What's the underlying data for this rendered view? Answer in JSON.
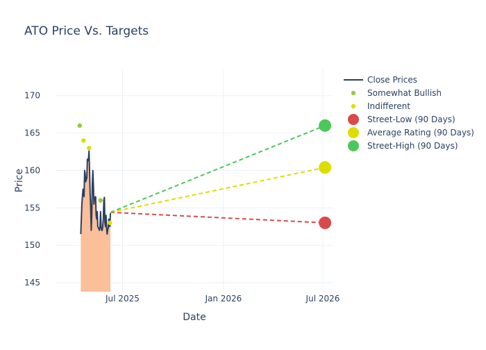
{
  "chart_data": {
    "type": "line",
    "title": "ATO Price Vs. Targets",
    "xlabel": "Date",
    "ylabel": "Price",
    "x_range": [
      "2025-03-01",
      "2026-07-20"
    ],
    "ylim": [
      143.8,
      173.5
    ],
    "y_ticks": [
      145,
      150,
      155,
      160,
      165,
      170
    ],
    "x_ticks": [
      {
        "date": "2025-07-01",
        "label": "Jul 2025"
      },
      {
        "date": "2026-01-01",
        "label": "Jan 2026"
      },
      {
        "date": "2026-07-01",
        "label": "Jul 2026"
      }
    ],
    "grid": true,
    "legend_position": "top-right",
    "colors": {
      "close": "#2a3f5f",
      "area_fill": "#fbbf99",
      "somewhat_bullish": "#97c93d",
      "indifferent": "#dedd00",
      "street_low": "#d94a4a",
      "average": "#dedd00",
      "street_high": "#4cc75a"
    },
    "series": [
      {
        "name": "Close Prices",
        "kind": "line",
        "points": [
          [
            "2025-04-16",
            151.5
          ],
          [
            "2025-04-17",
            153.5
          ],
          [
            "2025-04-18",
            155.5
          ],
          [
            "2025-04-20",
            157.5
          ],
          [
            "2025-04-21",
            157.0
          ],
          [
            "2025-04-22",
            156.5
          ],
          [
            "2025-04-23",
            160.0
          ],
          [
            "2025-04-24",
            159.5
          ],
          [
            "2025-04-25",
            158.5
          ],
          [
            "2025-04-27",
            159.0
          ],
          [
            "2025-04-28",
            161.5
          ],
          [
            "2025-04-29",
            161.3
          ],
          [
            "2025-04-30",
            161.5
          ],
          [
            "2025-05-01",
            162.6
          ],
          [
            "2025-05-02",
            160.0
          ],
          [
            "2025-05-03",
            157.0
          ],
          [
            "2025-05-04",
            155.0
          ],
          [
            "2025-05-05",
            152.0
          ],
          [
            "2025-05-06",
            154.0
          ],
          [
            "2025-05-07",
            158.0
          ],
          [
            "2025-05-08",
            160.0
          ],
          [
            "2025-05-09",
            158.0
          ],
          [
            "2025-05-10",
            155.5
          ],
          [
            "2025-05-11",
            156.4
          ],
          [
            "2025-05-12",
            156.4
          ],
          [
            "2025-05-13",
            156.5
          ],
          [
            "2025-05-14",
            154.0
          ],
          [
            "2025-05-15",
            153.5
          ],
          [
            "2025-05-16",
            154.5
          ],
          [
            "2025-05-17",
            152.5
          ],
          [
            "2025-05-19",
            152.2
          ],
          [
            "2025-05-20",
            152.0
          ],
          [
            "2025-05-21",
            152.5
          ],
          [
            "2025-05-22",
            154.5
          ],
          [
            "2025-05-23",
            152.5
          ],
          [
            "2025-05-24",
            152.0
          ],
          [
            "2025-05-25",
            152.0
          ],
          [
            "2025-05-26",
            152.5
          ],
          [
            "2025-05-27",
            153.5
          ],
          [
            "2025-05-28",
            156.0
          ],
          [
            "2025-05-29",
            156.4
          ],
          [
            "2025-05-30",
            153.0
          ],
          [
            "2025-05-31",
            152.5
          ],
          [
            "2025-06-01",
            154.0
          ],
          [
            "2025-06-02",
            152.3
          ],
          [
            "2025-06-03",
            151.5
          ],
          [
            "2025-06-04",
            152.0
          ],
          [
            "2025-06-05",
            152.4
          ],
          [
            "2025-06-06",
            153.5
          ],
          [
            "2025-06-07",
            153.0
          ],
          [
            "2025-06-08",
            152.5
          ],
          [
            "2025-06-09",
            154.3
          ]
        ]
      },
      {
        "name": "Somewhat Bullish",
        "kind": "markers",
        "points": [
          [
            "2025-04-14",
            166.0
          ],
          [
            "2025-05-22",
            156.0
          ]
        ]
      },
      {
        "name": "Indifferent",
        "kind": "markers",
        "points": [
          [
            "2025-04-21",
            164.0
          ],
          [
            "2025-05-01",
            163.0
          ],
          [
            "2025-06-08",
            153.0
          ]
        ]
      },
      {
        "name": "Street-Low (90 Days)",
        "kind": "target",
        "start": [
          "2025-06-09",
          154.4
        ],
        "end": [
          "2026-07-05",
          153.0
        ]
      },
      {
        "name": "Average Rating (90 Days)",
        "kind": "target",
        "start": [
          "2025-06-09",
          154.4
        ],
        "end": [
          "2026-07-05",
          160.4
        ]
      },
      {
        "name": "Street-High (90 Days)",
        "kind": "target",
        "start": [
          "2025-06-09",
          154.4
        ],
        "end": [
          "2026-07-05",
          166.0
        ]
      }
    ]
  }
}
